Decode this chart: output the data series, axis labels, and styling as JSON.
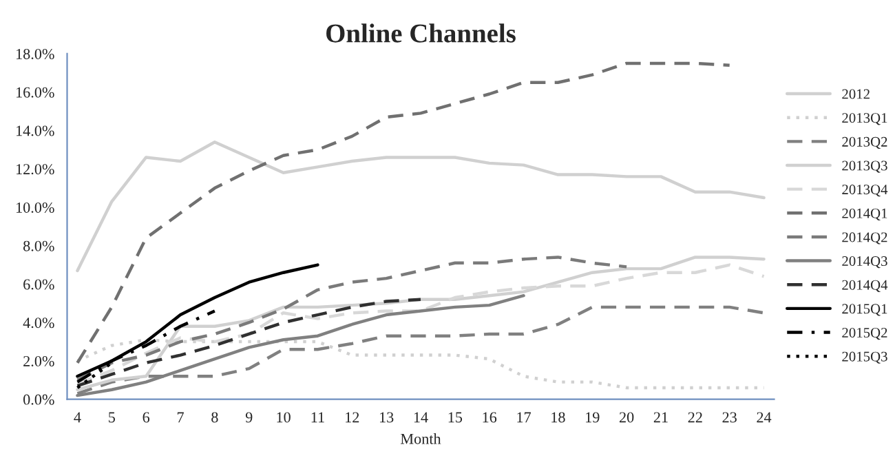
{
  "chart_data": {
    "type": "line",
    "title": "Online Channels",
    "xlabel": "Month",
    "categories": [
      "4",
      "5",
      "6",
      "7",
      "8",
      "9",
      "10",
      "11",
      "12",
      "13",
      "14",
      "15",
      "16",
      "17",
      "18",
      "19",
      "20",
      "21",
      "22",
      "23",
      "24"
    ],
    "ylim": [
      0,
      18
    ],
    "yticks": [
      {
        "value": 0,
        "label": "0.0%"
      },
      {
        "value": 2,
        "label": "2.0%"
      },
      {
        "value": 4,
        "label": "4.0%"
      },
      {
        "value": 6,
        "label": "6.0%"
      },
      {
        "value": 8,
        "label": "8.0%"
      },
      {
        "value": 10,
        "label": "10.0%"
      },
      {
        "value": 12,
        "label": "12.0%"
      },
      {
        "value": 14,
        "label": "14.0%"
      },
      {
        "value": 16,
        "label": "16.0%"
      },
      {
        "value": 18,
        "label": "18.0%"
      }
    ],
    "grid": false,
    "legend": "right",
    "marker": "none",
    "series": [
      {
        "name": "2012",
        "color": "#d0d0d0",
        "line_style": "solid",
        "values": [
          6.7,
          10.3,
          12.6,
          12.4,
          13.4,
          12.6,
          11.8,
          12.1,
          12.4,
          12.6,
          12.6,
          12.6,
          12.3,
          12.2,
          11.7,
          11.7,
          11.6,
          11.6,
          10.8,
          10.8,
          10.5
        ]
      },
      {
        "name": "2013Q1",
        "color": "#d0d0d0",
        "line_style": "dotted",
        "values": [
          2.0,
          2.8,
          3.1,
          3.0,
          3.0,
          3.0,
          3.0,
          3.0,
          2.3,
          2.3,
          2.3,
          2.3,
          2.1,
          1.2,
          0.9,
          0.9,
          0.6,
          0.6,
          0.6,
          0.6,
          0.6
        ]
      },
      {
        "name": "2013Q2",
        "color": "#808080",
        "line_style": "dashed",
        "values": [
          0.3,
          0.9,
          1.2,
          1.2,
          1.2,
          1.6,
          2.6,
          2.6,
          2.9,
          3.3,
          3.3,
          3.3,
          3.4,
          3.4,
          3.9,
          4.8,
          4.8,
          4.8,
          4.8,
          4.8,
          4.5
        ]
      },
      {
        "name": "2013Q3",
        "color": "#d0d0d0",
        "line_style": "solid",
        "values": [
          0.5,
          1.0,
          1.2,
          3.8,
          3.8,
          4.1,
          4.8,
          4.8,
          4.9,
          5.0,
          5.2,
          5.2,
          5.4,
          5.6,
          6.1,
          6.6,
          6.8,
          6.8,
          7.4,
          7.4,
          7.3
        ]
      },
      {
        "name": "2013Q4",
        "color": "#d8d8d8",
        "line_style": "dashed",
        "values": [
          0.8,
          1.5,
          2.4,
          3.2,
          3.0,
          3.4,
          4.5,
          4.2,
          4.5,
          4.6,
          4.6,
          5.3,
          5.6,
          5.8,
          5.9,
          5.9,
          6.3,
          6.6,
          6.6,
          7.0,
          6.4
        ]
      },
      {
        "name": "2014Q1",
        "color": "#707070",
        "line_style": "dashed",
        "values": [
          1.9,
          4.8,
          8.4,
          9.7,
          11.0,
          11.9,
          12.7,
          13.0,
          13.7,
          14.7,
          14.9,
          15.4,
          15.9,
          16.5,
          16.5,
          16.9,
          17.5,
          17.5,
          17.5,
          17.4,
          null
        ]
      },
      {
        "name": "2014Q2",
        "color": "#7a7a7a",
        "line_style": "dashed",
        "values": [
          1.0,
          1.9,
          2.3,
          3.0,
          3.4,
          4.0,
          4.7,
          5.7,
          6.1,
          6.3,
          6.7,
          7.1,
          7.1,
          7.3,
          7.4,
          7.1,
          6.9,
          null,
          null,
          null,
          null
        ]
      },
      {
        "name": "2014Q3",
        "color": "#808080",
        "line_style": "solid",
        "values": [
          0.2,
          0.5,
          0.9,
          1.5,
          2.1,
          2.7,
          3.1,
          3.3,
          3.9,
          4.4,
          4.6,
          4.8,
          4.9,
          5.4,
          null,
          null,
          null,
          null,
          null,
          null,
          null
        ]
      },
      {
        "name": "2014Q4",
        "color": "#303030",
        "line_style": "dashed",
        "values": [
          0.7,
          1.3,
          1.9,
          2.3,
          2.8,
          3.4,
          4.0,
          4.4,
          4.8,
          5.1,
          5.2,
          null,
          null,
          null,
          null,
          null,
          null,
          null,
          null,
          null,
          null
        ]
      },
      {
        "name": "2015Q1",
        "color": "#000000",
        "line_style": "solid",
        "values": [
          1.2,
          2.0,
          3.0,
          4.4,
          5.3,
          6.1,
          6.6,
          7.0,
          null,
          null,
          null,
          null,
          null,
          null,
          null,
          null,
          null,
          null,
          null,
          null,
          null
        ]
      },
      {
        "name": "2015Q2",
        "color": "#000000",
        "line_style": "dashdot",
        "values": [
          0.9,
          2.0,
          2.8,
          3.8,
          4.6,
          null,
          null,
          null,
          null,
          null,
          null,
          null,
          null,
          null,
          null,
          null,
          null,
          null,
          null,
          null,
          null
        ]
      },
      {
        "name": "2015Q3",
        "color": "#000000",
        "line_style": "dotted",
        "values": [
          0.6,
          1.9,
          null,
          null,
          null,
          null,
          null,
          null,
          null,
          null,
          null,
          null,
          null,
          null,
          null,
          null,
          null,
          null,
          null,
          null,
          null
        ]
      }
    ]
  }
}
